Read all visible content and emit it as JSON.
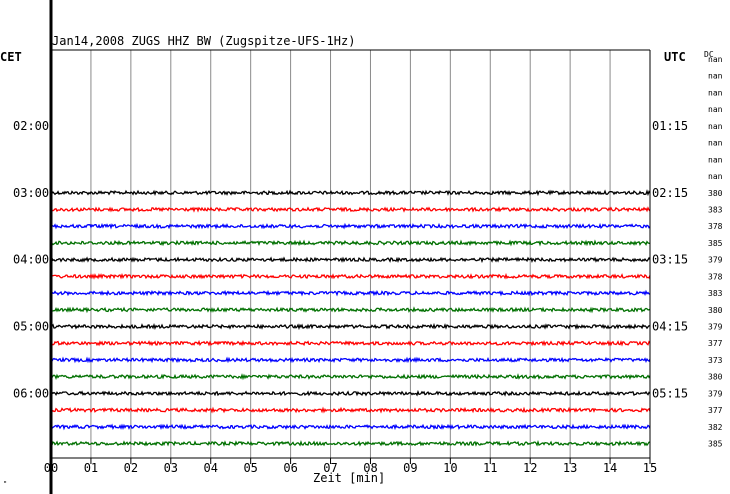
{
  "chart_data": {
    "type": "line",
    "title": "Jan14,2008   ZUGS HHZ BW (Zugspitze-UFS-1Hz)",
    "xlabel": "Zeit [min]",
    "left_tz": "CET",
    "right_tz": "UTC",
    "dc_label": "DC",
    "xlim": [
      0,
      15
    ],
    "xticks": [
      "00",
      "01",
      "02",
      "03",
      "04",
      "05",
      "06",
      "07",
      "08",
      "09",
      "10",
      "11",
      "12",
      "13",
      "14",
      "15"
    ],
    "left_time_labels": [
      "02:00",
      "03:00",
      "04:00",
      "05:00",
      "06:00"
    ],
    "right_time_labels": [
      "01:15",
      "02:15",
      "03:15",
      "04:15",
      "05:15"
    ],
    "time_label_rows": [
      4,
      8,
      12,
      16,
      20
    ],
    "row_dc_values": [
      "nan",
      "nan",
      "nan",
      "nan",
      "nan",
      "nan",
      "nan",
      "nan",
      "380",
      "383",
      "378",
      "385",
      "379",
      "378",
      "383",
      "380",
      "379",
      "377",
      "373",
      "380",
      "379",
      "377",
      "382",
      "385"
    ],
    "trace_start_row": 8,
    "trace_colors": [
      "#000000",
      "#ff0000",
      "#0000ff",
      "#007000"
    ],
    "corner_mark": "\""
  }
}
